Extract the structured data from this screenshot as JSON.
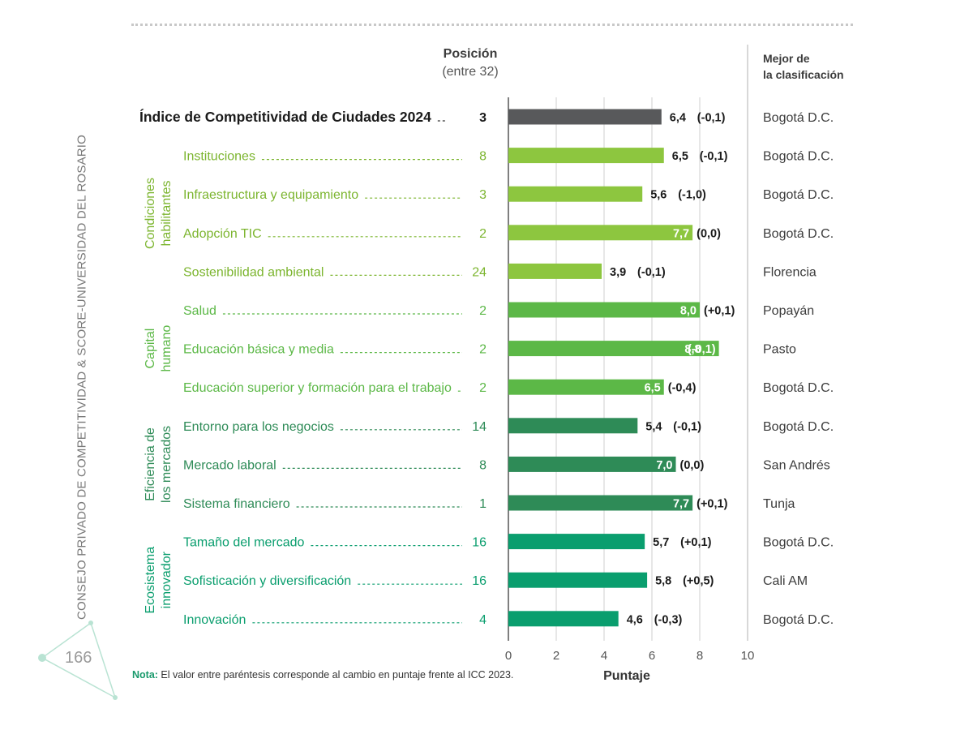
{
  "header": {
    "position_title": "Posición",
    "position_sub": "(entre 32)",
    "best_line1": "Mejor de",
    "best_line2": "la clasificación"
  },
  "side_text": "CONSEJO PRIVADO DE COMPETITIVIDAD & SCORE-UNIVERSIDAD DEL ROSARIO",
  "page_number": "166",
  "note": {
    "label": "Nota:",
    "text": " El valor entre paréntesis corresponde al cambio en puntaje frente al ICC 2023."
  },
  "colors": {
    "index": "#58595b",
    "condiciones": "#8dc63f",
    "capital": "#5cb847",
    "eficiencia": "#2e8b57",
    "ecosistema": "#0a9e6e"
  },
  "chart_data": {
    "type": "bar",
    "orientation": "horizontal",
    "xlabel": "Puntaje",
    "xlim": [
      0,
      10
    ],
    "xticks": [
      0,
      2,
      4,
      6,
      8,
      10
    ],
    "grid": true,
    "groups": [
      {
        "name": "Condiciones habilitantes",
        "color_key": "condiciones",
        "line1": "Condiciones",
        "line2": "habilitantes"
      },
      {
        "name": "Capital humano",
        "color_key": "capital",
        "line1": "Capital",
        "line2": "humano"
      },
      {
        "name": "Eficiencia de los mercados",
        "color_key": "eficiencia",
        "line1": "Eficiencia de",
        "line2": "los mercados"
      },
      {
        "name": "Ecosistema innovador",
        "color_key": "ecosistema",
        "line1": "Ecosistema",
        "line2": "innovador"
      }
    ],
    "rows": [
      {
        "label": "Índice de Competitividad de Ciudades 2024",
        "position": "3",
        "value": 6.4,
        "value_label": "6,4",
        "change": "(-0,1)",
        "best": "Bogotá D.C.",
        "group": "index"
      },
      {
        "label": "Instituciones",
        "position": "8",
        "value": 6.5,
        "value_label": "6,5",
        "change": "(-0,1)",
        "best": "Bogotá D.C.",
        "group": "condiciones"
      },
      {
        "label": "Infraestructura y equipamiento",
        "position": "3",
        "value": 5.6,
        "value_label": "5,6",
        "change": "(-1,0)",
        "best": "Bogotá D.C.",
        "group": "condiciones"
      },
      {
        "label": "Adopción TIC",
        "position": "2",
        "value": 7.7,
        "value_label": "7,7",
        "change": "(0,0)",
        "best": "Bogotá D.C.",
        "group": "condiciones"
      },
      {
        "label": "Sostenibilidad ambiental",
        "position": "24",
        "value": 3.9,
        "value_label": "3,9",
        "change": "(-0,1)",
        "best": "Florencia",
        "group": "condiciones"
      },
      {
        "label": "Salud",
        "position": "2",
        "value": 8.0,
        "value_label": "8,0",
        "change": "(+0,1)",
        "best": "Popayán",
        "group": "capital"
      },
      {
        "label": "Educación básica y media",
        "position": "2",
        "value": 8.8,
        "value_label": "8,8",
        "change": "(-0,1)",
        "best": "Pasto",
        "group": "capital"
      },
      {
        "label": "Educación superior y formación para el trabajo",
        "position": "2",
        "value": 6.5,
        "value_label": "6,5",
        "change": "(-0,4)",
        "best": "Bogotá D.C.",
        "group": "capital"
      },
      {
        "label": "Entorno para los negocios",
        "position": "14",
        "value": 5.4,
        "value_label": "5,4",
        "change": "(-0,1)",
        "best": "Bogotá D.C.",
        "group": "eficiencia"
      },
      {
        "label": "Mercado laboral",
        "position": "8",
        "value": 7.0,
        "value_label": "7,0",
        "change": "(0,0)",
        "best": "San Andrés",
        "group": "eficiencia"
      },
      {
        "label": "Sistema financiero",
        "position": "1",
        "value": 7.7,
        "value_label": "7,7",
        "change": "(+0,1)",
        "best": "Tunja",
        "group": "eficiencia"
      },
      {
        "label": "Tamaño del mercado",
        "position": "16",
        "value": 5.7,
        "value_label": "5,7",
        "change": "(+0,1)",
        "best": "Bogotá D.C.",
        "group": "ecosistema"
      },
      {
        "label": "Sofisticación y diversificación",
        "position": "16",
        "value": 5.8,
        "value_label": "5,8",
        "change": "(+0,5)",
        "best": "Cali AM",
        "group": "ecosistema"
      },
      {
        "label": "Innovación",
        "position": "4",
        "value": 4.6,
        "value_label": "4,6",
        "change": "(-0,3)",
        "best": "Bogotá D.C.",
        "group": "ecosistema"
      }
    ]
  }
}
